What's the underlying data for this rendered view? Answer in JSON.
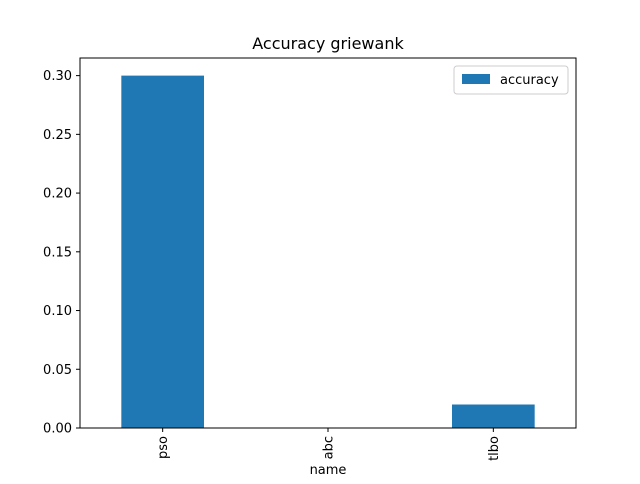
{
  "chart_data": {
    "type": "bar",
    "title": "Accuracy griewank",
    "xlabel": "name",
    "ylabel": "",
    "categories": [
      "pso",
      "abc",
      "tlbo"
    ],
    "series": [
      {
        "name": "accuracy",
        "values": [
          0.3,
          0.0,
          0.02
        ],
        "color": "#1f77b4"
      }
    ],
    "ylim": [
      0,
      0.315
    ],
    "yticks": [
      0.0,
      0.05,
      0.1,
      0.15,
      0.2,
      0.25,
      0.3
    ],
    "ytick_labels": [
      "0.00",
      "0.05",
      "0.10",
      "0.15",
      "0.20",
      "0.25",
      "0.30"
    ],
    "xtick_rotation": "vertical",
    "grid": false,
    "legend": {
      "position": "top-right",
      "entries": [
        "accuracy"
      ]
    }
  }
}
